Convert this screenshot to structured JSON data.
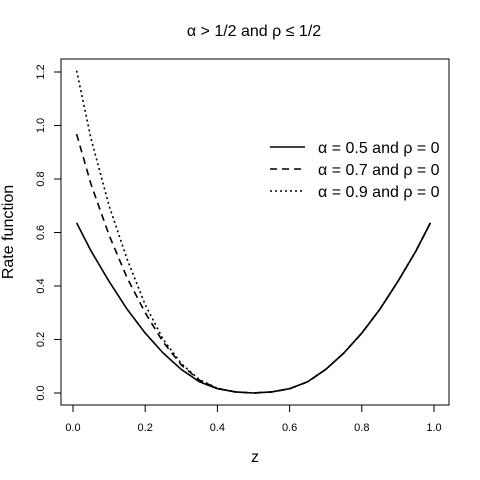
{
  "chart_data": {
    "type": "line",
    "title": "α > 1/2 and ρ ≤ 1/2",
    "xlabel": "z",
    "ylabel": "Rate function",
    "xlim": [
      0.0,
      1.0
    ],
    "ylim": [
      0.0,
      1.2
    ],
    "xticks": [
      0.0,
      0.2,
      0.4,
      0.6,
      0.8,
      1.0
    ],
    "xtick_labels": [
      "0.0",
      "0.2",
      "0.4",
      "0.6",
      "0.8",
      "1.0"
    ],
    "yticks": [
      0.0,
      0.2,
      0.4,
      0.6,
      0.8,
      1.0,
      1.2
    ],
    "ytick_labels": [
      "0.0",
      "0.2",
      "0.4",
      "0.6",
      "0.8",
      "1.0",
      "1.2"
    ],
    "grid": false,
    "legend_position": "right",
    "series": [
      {
        "name": "α = 0.5 and ρ = 0",
        "style": "solid",
        "x": [
          0.01,
          0.05,
          0.1,
          0.15,
          0.2,
          0.25,
          0.3,
          0.35,
          0.4,
          0.45,
          0.5,
          0.55,
          0.6,
          0.65,
          0.7,
          0.75,
          0.8,
          0.85,
          0.9,
          0.95,
          0.99
        ],
        "y": [
          0.636,
          0.531,
          0.417,
          0.313,
          0.224,
          0.149,
          0.088,
          0.042,
          0.016,
          0.004,
          0.0,
          0.004,
          0.016,
          0.042,
          0.088,
          0.149,
          0.224,
          0.313,
          0.417,
          0.531,
          0.636
        ]
      },
      {
        "name": "α = 0.7 and ρ = 0",
        "style": "dashed",
        "x": [
          0.01,
          0.05,
          0.1,
          0.15,
          0.2,
          0.25,
          0.3,
          0.35,
          0.4,
          0.45,
          0.5,
          0.55,
          0.6,
          0.65,
          0.7,
          0.75,
          0.8,
          0.85,
          0.9,
          0.95,
          0.99
        ],
        "y": [
          0.968,
          0.78,
          0.59,
          0.43,
          0.3,
          0.19,
          0.105,
          0.048,
          0.017,
          0.004,
          0.0,
          0.004,
          0.016,
          0.042,
          0.088,
          0.149,
          0.224,
          0.313,
          0.417,
          0.531,
          0.636
        ]
      },
      {
        "name": "α = 0.9 and ρ = 0",
        "style": "dotted",
        "x": [
          0.01,
          0.05,
          0.1,
          0.15,
          0.2,
          0.25,
          0.3,
          0.35,
          0.4,
          0.45,
          0.5,
          0.55,
          0.6,
          0.65,
          0.7,
          0.75,
          0.8,
          0.85,
          0.9,
          0.95,
          0.99
        ],
        "y": [
          1.205,
          0.95,
          0.7,
          0.5,
          0.33,
          0.2,
          0.11,
          0.05,
          0.018,
          0.004,
          0.0,
          0.004,
          0.016,
          0.042,
          0.088,
          0.149,
          0.224,
          0.313,
          0.417,
          0.531,
          0.636
        ]
      }
    ]
  }
}
